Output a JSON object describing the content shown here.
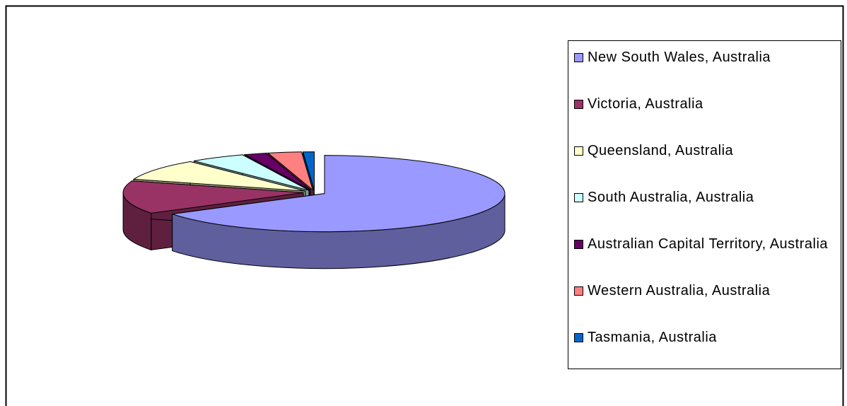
{
  "chart_data": {
    "type": "pie3d",
    "categories": [
      "New South Wales, Australia",
      "Victoria, Australia",
      "Queensland, Australia",
      "South Australia, Australia",
      "Australian Capital Territory, Australia",
      "Western Australia, Australia",
      "Tasmania, Australia"
    ],
    "values": [
      66,
      14,
      9,
      5,
      2,
      3,
      1
    ],
    "colors": [
      "#9999ff",
      "#993366",
      "#ffffcc",
      "#ccffff",
      "#660066",
      "#ff8080",
      "#0066cc"
    ],
    "legend": "right"
  }
}
